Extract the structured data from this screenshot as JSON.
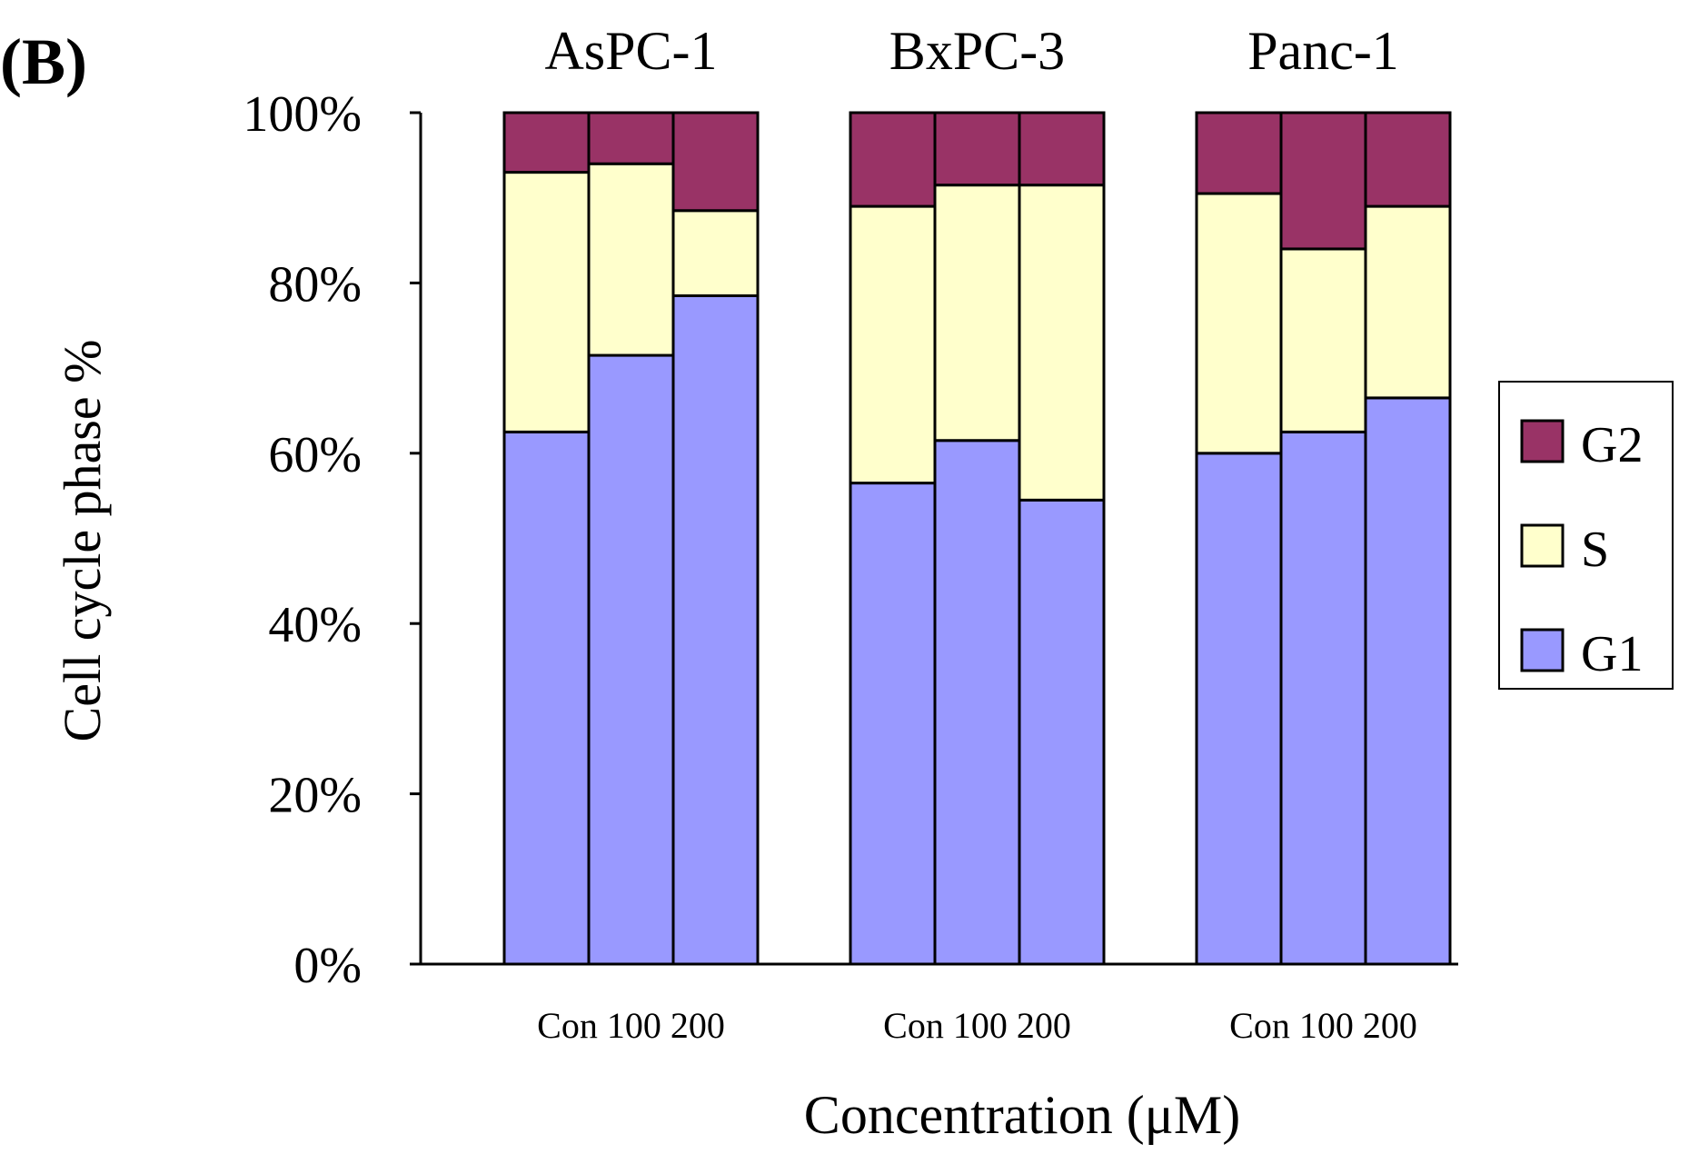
{
  "panel_label": "(B)",
  "colors": {
    "G1": "#9999ff",
    "S": "#ffffcc",
    "G2": "#993366"
  },
  "chart_data": {
    "type": "bar",
    "stacked": true,
    "percent_stacked": true,
    "groups": [
      "AsPC-1",
      "BxPC-3",
      "Panc-1"
    ],
    "categories": [
      "Con",
      "100",
      "200"
    ],
    "category_label": "Con 100 200",
    "xlabel": "Concentration (μM)",
    "ylabel": "Cell cycle phase %",
    "ylim": [
      0,
      100
    ],
    "yticks": [
      "0%",
      "20%",
      "40%",
      "60%",
      "80%",
      "100%"
    ],
    "grid": false,
    "legend_position": "right",
    "series": [
      {
        "name": "G1",
        "values": [
          [
            62.5,
            71.5,
            78.5
          ],
          [
            56.5,
            61.5,
            54.5
          ],
          [
            60.0,
            62.5,
            66.5
          ]
        ]
      },
      {
        "name": "S",
        "values": [
          [
            30.5,
            22.5,
            10.0
          ],
          [
            32.5,
            30.0,
            37.0
          ],
          [
            30.5,
            21.5,
            22.5
          ]
        ]
      },
      {
        "name": "G2",
        "values": [
          [
            7.0,
            6.0,
            11.5
          ],
          [
            11.0,
            8.5,
            8.5
          ],
          [
            9.5,
            16.0,
            11.0
          ]
        ]
      }
    ],
    "legend": [
      "G2",
      "S",
      "G1"
    ]
  }
}
